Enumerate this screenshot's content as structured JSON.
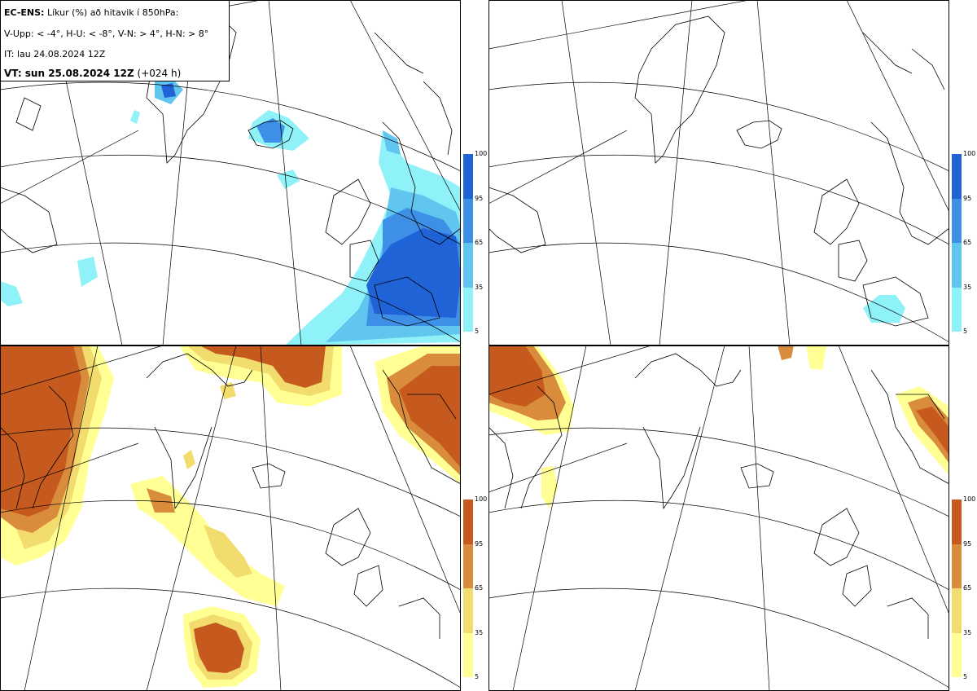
{
  "header": {
    "model": "EC-ENS:",
    "desc": "Líkur (%) að hitavik í 850hPa:",
    "thresholds": "V-Upp: < -4°, H-U: < -8°, V-N: > 4°, H-N: > 8°",
    "init_time": "IT: lau 24.08.2024 12Z",
    "valid_prefix": "VT: sun 25.08.2024 12Z",
    "valid_suffix": "(+024 h)"
  },
  "colorbars": {
    "cold": {
      "ticks": [
        "100",
        "95",
        "65",
        "35",
        "5"
      ],
      "colors": [
        "#1f63d6",
        "#3e8fe6",
        "#60c6ef",
        "#8ef2f8"
      ]
    },
    "warm": {
      "ticks": [
        "100",
        "95",
        "65",
        "35",
        "5"
      ],
      "colors": [
        "#c65a1e",
        "#d98c3c",
        "#f2dc6e",
        "#ffff94"
      ]
    }
  },
  "panels": [
    {
      "name": "V-Upp",
      "threshold": "< -4°",
      "shading": "cold"
    },
    {
      "name": "H-U",
      "threshold": "< -8°",
      "shading": "cold"
    },
    {
      "name": "V-N",
      "threshold": "> 4°",
      "shading": "warm"
    },
    {
      "name": "H-N",
      "threshold": "> 8°",
      "shading": "warm"
    }
  ]
}
